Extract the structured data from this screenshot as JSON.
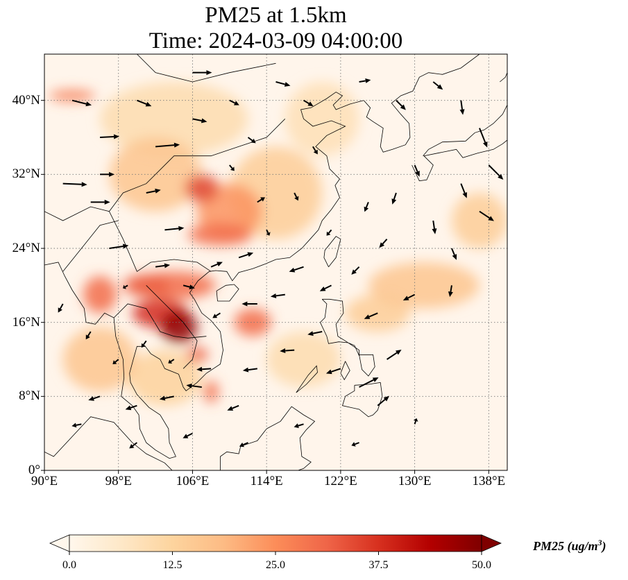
{
  "title": {
    "line1": "PM25 at 1.5km",
    "line2": "Time: 2024-03-09 04:00:00"
  },
  "map": {
    "projection": "PlateCarree",
    "lon_range": [
      90,
      140
    ],
    "lat_range": [
      0,
      45
    ],
    "lon_ticks": [
      {
        "value": 90,
        "label": "90°E"
      },
      {
        "value": 98,
        "label": "98°E"
      },
      {
        "value": 106,
        "label": "106°E"
      },
      {
        "value": 114,
        "label": "114°E"
      },
      {
        "value": 122,
        "label": "122°E"
      },
      {
        "value": 130,
        "label": "130°E"
      },
      {
        "value": 138,
        "label": "138°E"
      }
    ],
    "lat_ticks": [
      {
        "value": 0,
        "label": "0°"
      },
      {
        "value": 8,
        "label": "8°N"
      },
      {
        "value": 16,
        "label": "16°N"
      },
      {
        "value": 24,
        "label": "24°N"
      },
      {
        "value": 32,
        "label": "32°N"
      },
      {
        "value": 40,
        "label": "40°N"
      }
    ],
    "gridlines": true,
    "background_color": "#fff5eb"
  },
  "field": {
    "variable": "PM25",
    "level": "1.5km",
    "hotspots": [
      {
        "lon": 104.5,
        "lat": 15.5,
        "value": 48,
        "rlon": 2.0,
        "rlat": 1.8
      },
      {
        "lon": 102.5,
        "lat": 17.0,
        "value": 38,
        "rlon": 3.0,
        "rlat": 1.6
      },
      {
        "lon": 104.0,
        "lat": 20.0,
        "value": 30,
        "rlon": 4.5,
        "rlat": 1.5
      },
      {
        "lon": 101.0,
        "lat": 20.0,
        "value": 32,
        "rlon": 2.5,
        "rlat": 1.2
      },
      {
        "lon": 96.0,
        "lat": 19.0,
        "value": 30,
        "rlon": 1.8,
        "rlat": 2.0
      },
      {
        "lon": 107.0,
        "lat": 30.5,
        "value": 35,
        "rlon": 1.8,
        "rlat": 1.5
      },
      {
        "lon": 109.0,
        "lat": 25.5,
        "value": 30,
        "rlon": 3.5,
        "rlat": 1.2
      },
      {
        "lon": 112.5,
        "lat": 16.0,
        "value": 30,
        "rlon": 2.0,
        "rlat": 1.5
      },
      {
        "lon": 110.0,
        "lat": 28.0,
        "value": 24,
        "rlon": 3.5,
        "rlat": 3.0
      },
      {
        "lon": 106.5,
        "lat": 12.5,
        "value": 32,
        "rlon": 1.2,
        "rlat": 0.8
      },
      {
        "lon": 108.0,
        "lat": 8.5,
        "value": 30,
        "rlon": 0.8,
        "rlat": 1.2
      },
      {
        "lon": 93.0,
        "lat": 40.5,
        "value": 28,
        "rlon": 2.5,
        "rlat": 0.6
      },
      {
        "lon": 102.0,
        "lat": 32.0,
        "value": 16,
        "rlon": 5.0,
        "rlat": 4.0
      },
      {
        "lon": 115.0,
        "lat": 30.0,
        "value": 14,
        "rlon": 5.0,
        "rlat": 5.0
      },
      {
        "lon": 131.0,
        "lat": 20.0,
        "value": 16,
        "rlon": 6.0,
        "rlat": 2.5
      },
      {
        "lon": 126.0,
        "lat": 17.0,
        "value": 14,
        "rlon": 3.5,
        "rlat": 2.0
      },
      {
        "lon": 96.0,
        "lat": 12.0,
        "value": 16,
        "rlon": 4.0,
        "rlat": 3.5
      },
      {
        "lon": 103.0,
        "lat": 10.0,
        "value": 13,
        "rlon": 4.0,
        "rlat": 3.0
      },
      {
        "lon": 104.0,
        "lat": 38.0,
        "value": 10,
        "rlon": 8.0,
        "rlat": 4.0
      },
      {
        "lon": 120.0,
        "lat": 38.0,
        "value": 9,
        "rlon": 4.0,
        "rlat": 4.0
      },
      {
        "lon": 137.0,
        "lat": 27.0,
        "value": 14,
        "rlon": 3.0,
        "rlat": 3.0
      },
      {
        "lon": 118.0,
        "lat": 12.0,
        "value": 10,
        "rlon": 4.0,
        "rlat": 3.0
      }
    ]
  },
  "wind": {
    "arrows": [
      {
        "lon": 93,
        "lat": 40,
        "u": 2,
        "v": -0.5
      },
      {
        "lon": 96,
        "lat": 36,
        "u": 2,
        "v": 0.1
      },
      {
        "lon": 92,
        "lat": 31,
        "u": 2.5,
        "v": -0.1
      },
      {
        "lon": 95,
        "lat": 29,
        "u": 2,
        "v": 0
      },
      {
        "lon": 97,
        "lat": 24,
        "u": 2,
        "v": 0.3
      },
      {
        "lon": 100,
        "lat": 40,
        "u": 1.5,
        "v": -0.6
      },
      {
        "lon": 102,
        "lat": 35,
        "u": 2.5,
        "v": 0.2
      },
      {
        "lon": 101,
        "lat": 30,
        "u": 1.5,
        "v": 0.3
      },
      {
        "lon": 103,
        "lat": 26,
        "u": 2,
        "v": 0.2
      },
      {
        "lon": 106,
        "lat": 38,
        "u": 1.5,
        "v": -0.3
      },
      {
        "lon": 106,
        "lat": 43,
        "u": 2,
        "v": 0
      },
      {
        "lon": 110,
        "lat": 40,
        "u": 1,
        "v": -0.5
      },
      {
        "lon": 112,
        "lat": 36,
        "u": 0.8,
        "v": -0.6
      },
      {
        "lon": 115,
        "lat": 42,
        "u": 1.5,
        "v": -0.4
      },
      {
        "lon": 118,
        "lat": 40,
        "u": 1,
        "v": -0.6
      },
      {
        "lon": 119,
        "lat": 35,
        "u": 0.5,
        "v": -0.8
      },
      {
        "lon": 124,
        "lat": 42,
        "u": 1.2,
        "v": 0.2
      },
      {
        "lon": 128,
        "lat": 40,
        "u": 1,
        "v": -1
      },
      {
        "lon": 132,
        "lat": 42,
        "u": 1,
        "v": -0.8
      },
      {
        "lon": 135,
        "lat": 40,
        "u": 0.2,
        "v": -1.5
      },
      {
        "lon": 137,
        "lat": 37,
        "u": 0.8,
        "v": -2
      },
      {
        "lon": 138,
        "lat": 33,
        "u": 1.5,
        "v": -1.5
      },
      {
        "lon": 135,
        "lat": 31,
        "u": 0.6,
        "v": -1.5
      },
      {
        "lon": 130,
        "lat": 33,
        "u": 0.5,
        "v": -1.2
      },
      {
        "lon": 128,
        "lat": 30,
        "u": -0.4,
        "v": -1.2
      },
      {
        "lon": 125,
        "lat": 29,
        "u": -0.4,
        "v": -1.0
      },
      {
        "lon": 127,
        "lat": 25,
        "u": -0.8,
        "v": -0.9
      },
      {
        "lon": 132,
        "lat": 27,
        "u": 0.2,
        "v": -1.4
      },
      {
        "lon": 134,
        "lat": 24,
        "u": 0.5,
        "v": -1.2
      },
      {
        "lon": 137,
        "lat": 28,
        "u": 1.5,
        "v": -1
      },
      {
        "lon": 121,
        "lat": 26,
        "u": -0.5,
        "v": -0.6
      },
      {
        "lon": 118,
        "lat": 22,
        "u": -1.5,
        "v": -0.5
      },
      {
        "lon": 116,
        "lat": 19,
        "u": -1.5,
        "v": -0.2
      },
      {
        "lon": 121,
        "lat": 20,
        "u": -1.2,
        "v": -0.6
      },
      {
        "lon": 124,
        "lat": 22,
        "u": -0.8,
        "v": -0.8
      },
      {
        "lon": 126,
        "lat": 17,
        "u": -1.4,
        "v": -0.6
      },
      {
        "lon": 130,
        "lat": 19,
        "u": -1.2,
        "v": -0.6
      },
      {
        "lon": 134,
        "lat": 20,
        "u": -0.2,
        "v": -1.2
      },
      {
        "lon": 120,
        "lat": 15,
        "u": -1.5,
        "v": -0.3
      },
      {
        "lon": 117,
        "lat": 13,
        "u": -1.5,
        "v": -0.1
      },
      {
        "lon": 122,
        "lat": 11,
        "u": -1.5,
        "v": -0.5
      },
      {
        "lon": 124,
        "lat": 9,
        "u": 2,
        "v": 1
      },
      {
        "lon": 127,
        "lat": 12,
        "u": 1.5,
        "v": 1
      },
      {
        "lon": 126,
        "lat": 7,
        "u": 1.2,
        "v": 1
      },
      {
        "lon": 113,
        "lat": 11,
        "u": -1.5,
        "v": -0.2
      },
      {
        "lon": 111,
        "lat": 7,
        "u": -1.2,
        "v": -0.5
      },
      {
        "lon": 108,
        "lat": 11,
        "u": -1.5,
        "v": -0.1
      },
      {
        "lon": 104,
        "lat": 8,
        "u": -1.5,
        "v": -0.3
      },
      {
        "lon": 100,
        "lat": 7,
        "u": -1.2,
        "v": -0.4
      },
      {
        "lon": 96,
        "lat": 8,
        "u": -1.2,
        "v": -0.4
      },
      {
        "lon": 94,
        "lat": 5,
        "u": -1.0,
        "v": -0.2
      },
      {
        "lon": 100,
        "lat": 3,
        "u": -0.8,
        "v": -0.6
      },
      {
        "lon": 106,
        "lat": 4,
        "u": -1.0,
        "v": -0.5
      },
      {
        "lon": 112,
        "lat": 3,
        "u": -0.9,
        "v": -0.4
      },
      {
        "lon": 118,
        "lat": 5,
        "u": -1.0,
        "v": -0.3
      },
      {
        "lon": 124,
        "lat": 3,
        "u": -0.8,
        "v": -0.3
      },
      {
        "lon": 130,
        "lat": 5,
        "u": 0.2,
        "v": 0.6
      },
      {
        "lon": 95,
        "lat": 15,
        "u": -0.5,
        "v": -0.8
      },
      {
        "lon": 98,
        "lat": 12,
        "u": -0.6,
        "v": -0.5
      },
      {
        "lon": 92,
        "lat": 18,
        "u": -0.5,
        "v": -0.9
      },
      {
        "lon": 99,
        "lat": 20,
        "u": -0.5,
        "v": -0.3
      },
      {
        "lon": 102,
        "lat": 22,
        "u": 1.5,
        "v": 0.2
      },
      {
        "lon": 105,
        "lat": 20,
        "u": 1.2,
        "v": -0.3
      },
      {
        "lon": 108,
        "lat": 22,
        "u": 1.2,
        "v": 0.5
      },
      {
        "lon": 111,
        "lat": 23,
        "u": 1.5,
        "v": 0.5
      },
      {
        "lon": 109,
        "lat": 17,
        "u": -0.8,
        "v": -0.5
      },
      {
        "lon": 113,
        "lat": 18,
        "u": -1.6,
        "v": 0
      },
      {
        "lon": 101,
        "lat": 14,
        "u": -0.5,
        "v": -0.7
      },
      {
        "lon": 104,
        "lat": 12,
        "u": -0.6,
        "v": -0.4
      },
      {
        "lon": 107,
        "lat": 9,
        "u": -1.6,
        "v": 0.2
      },
      {
        "lon": 113,
        "lat": 29,
        "u": 0.8,
        "v": 0.5
      },
      {
        "lon": 117,
        "lat": 30,
        "u": 0.4,
        "v": -0.8
      },
      {
        "lon": 110,
        "lat": 33,
        "u": 0.5,
        "v": -0.6
      },
      {
        "lon": 114,
        "lat": 26,
        "u": 0.3,
        "v": -0.6
      },
      {
        "lon": 96,
        "lat": 32,
        "u": 1.5,
        "v": 0
      }
    ]
  },
  "colorbar": {
    "cmap": "OrRd",
    "range": [
      0,
      50
    ],
    "extend": "both",
    "colors": [
      "#fff7ec",
      "#fee8c8",
      "#fdd49e",
      "#fdbb84",
      "#fc8d59",
      "#ef6548",
      "#d7301f",
      "#b30000",
      "#7f0000"
    ],
    "ticks": [
      {
        "value": 0,
        "label": "0.0"
      },
      {
        "value": 12.5,
        "label": "12.5"
      },
      {
        "value": 25,
        "label": "25.0"
      },
      {
        "value": 37.5,
        "label": "37.5"
      },
      {
        "value": 50,
        "label": "50.0"
      }
    ],
    "label_text": "PM25 (ug/m",
    "label_exponent": "3",
    "label_close": ")"
  }
}
